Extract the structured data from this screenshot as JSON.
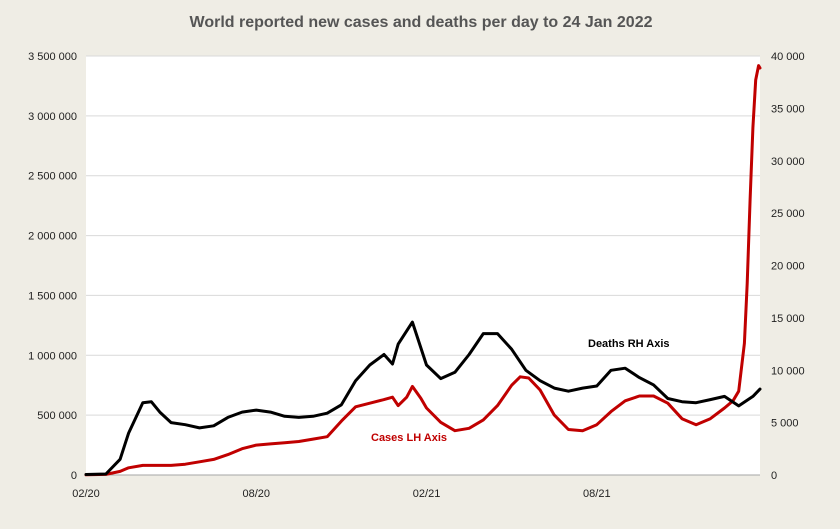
{
  "chart_data": {
    "type": "line",
    "title": "World reported new cases and deaths per day to 24 Jan 2022",
    "x_axis": {
      "tick_labels": [
        "02/20",
        "08/20",
        "02/21",
        "08/21"
      ],
      "tick_months": [
        0,
        6,
        12,
        18
      ],
      "range_months": [
        0,
        23.75
      ]
    },
    "y_left": {
      "ylim": [
        0,
        3500000
      ],
      "tick_labels": [
        "0",
        "500 000",
        "1 000 000",
        "1 500 000",
        "2 000 000",
        "2 500 000",
        "3 000 000",
        "3 500 000"
      ],
      "tick_values": [
        0,
        500000,
        1000000,
        1500000,
        2000000,
        2500000,
        3000000,
        3500000
      ]
    },
    "y_right": {
      "ylim": [
        0,
        40000
      ],
      "tick_labels": [
        "0",
        "5 000",
        "10 000",
        "15 000",
        "20 000",
        "25 000",
        "30 000",
        "35 000",
        "40 000"
      ],
      "tick_values": [
        0,
        5000,
        10000,
        15000,
        20000,
        25000,
        30000,
        35000,
        40000
      ]
    },
    "grid": "horizontal",
    "annotations": {
      "deaths": "Deaths RH Axis",
      "cases": "Cases LH Axis"
    },
    "series": [
      {
        "key": "cases",
        "axis": "left",
        "color": "#c00000",
        "points": [
          [
            0,
            2000
          ],
          [
            0.7,
            5000
          ],
          [
            1.2,
            30000
          ],
          [
            1.5,
            60000
          ],
          [
            2,
            80000
          ],
          [
            2.5,
            80000
          ],
          [
            3,
            80000
          ],
          [
            3.5,
            90000
          ],
          [
            4,
            110000
          ],
          [
            4.5,
            130000
          ],
          [
            5,
            170000
          ],
          [
            5.5,
            220000
          ],
          [
            6,
            250000
          ],
          [
            6.5,
            260000
          ],
          [
            7,
            270000
          ],
          [
            7.5,
            280000
          ],
          [
            8,
            300000
          ],
          [
            8.5,
            320000
          ],
          [
            9,
            450000
          ],
          [
            9.5,
            570000
          ],
          [
            10,
            600000
          ],
          [
            10.5,
            630000
          ],
          [
            10.8,
            650000
          ],
          [
            11,
            580000
          ],
          [
            11.3,
            650000
          ],
          [
            11.5,
            740000
          ],
          [
            11.8,
            640000
          ],
          [
            12,
            560000
          ],
          [
            12.5,
            440000
          ],
          [
            13,
            370000
          ],
          [
            13.5,
            390000
          ],
          [
            14,
            460000
          ],
          [
            14.5,
            580000
          ],
          [
            15,
            750000
          ],
          [
            15.3,
            820000
          ],
          [
            15.6,
            810000
          ],
          [
            16,
            710000
          ],
          [
            16.5,
            500000
          ],
          [
            17,
            380000
          ],
          [
            17.5,
            370000
          ],
          [
            18,
            420000
          ],
          [
            18.5,
            530000
          ],
          [
            19,
            620000
          ],
          [
            19.5,
            660000
          ],
          [
            20,
            660000
          ],
          [
            20.5,
            600000
          ],
          [
            21,
            470000
          ],
          [
            21.5,
            420000
          ],
          [
            22,
            470000
          ],
          [
            22.5,
            560000
          ],
          [
            22.8,
            620000
          ],
          [
            23,
            700000
          ],
          [
            23.2,
            1100000
          ],
          [
            23.3,
            1600000
          ],
          [
            23.4,
            2300000
          ],
          [
            23.5,
            2900000
          ],
          [
            23.6,
            3300000
          ],
          [
            23.7,
            3420000
          ],
          [
            23.75,
            3400000
          ]
        ]
      },
      {
        "key": "deaths",
        "axis": "right",
        "color": "#000000",
        "points": [
          [
            0,
            50
          ],
          [
            0.7,
            100
          ],
          [
            1.2,
            1500
          ],
          [
            1.5,
            4000
          ],
          [
            2,
            6900
          ],
          [
            2.3,
            7000
          ],
          [
            2.6,
            6000
          ],
          [
            3,
            5000
          ],
          [
            3.5,
            4800
          ],
          [
            4,
            4500
          ],
          [
            4.5,
            4700
          ],
          [
            5,
            5500
          ],
          [
            5.5,
            6000
          ],
          [
            6,
            6200
          ],
          [
            6.5,
            6000
          ],
          [
            7,
            5600
          ],
          [
            7.5,
            5500
          ],
          [
            8,
            5600
          ],
          [
            8.5,
            5900
          ],
          [
            9,
            6700
          ],
          [
            9.5,
            9000
          ],
          [
            10,
            10500
          ],
          [
            10.5,
            11500
          ],
          [
            10.8,
            10600
          ],
          [
            11,
            12500
          ],
          [
            11.5,
            14600
          ],
          [
            12,
            10500
          ],
          [
            12.5,
            9200
          ],
          [
            13,
            9800
          ],
          [
            13.5,
            11500
          ],
          [
            14,
            13500
          ],
          [
            14.5,
            13500
          ],
          [
            15,
            12000
          ],
          [
            15.5,
            10000
          ],
          [
            16,
            9000
          ],
          [
            16.5,
            8300
          ],
          [
            17,
            8000
          ],
          [
            17.5,
            8300
          ],
          [
            18,
            8500
          ],
          [
            18.5,
            10000
          ],
          [
            19,
            10200
          ],
          [
            19.5,
            9300
          ],
          [
            20,
            8600
          ],
          [
            20.5,
            7300
          ],
          [
            21,
            7000
          ],
          [
            21.5,
            6900
          ],
          [
            22,
            7200
          ],
          [
            22.5,
            7500
          ],
          [
            23,
            6600
          ],
          [
            23.5,
            7500
          ],
          [
            23.75,
            8200
          ]
        ]
      }
    ]
  }
}
